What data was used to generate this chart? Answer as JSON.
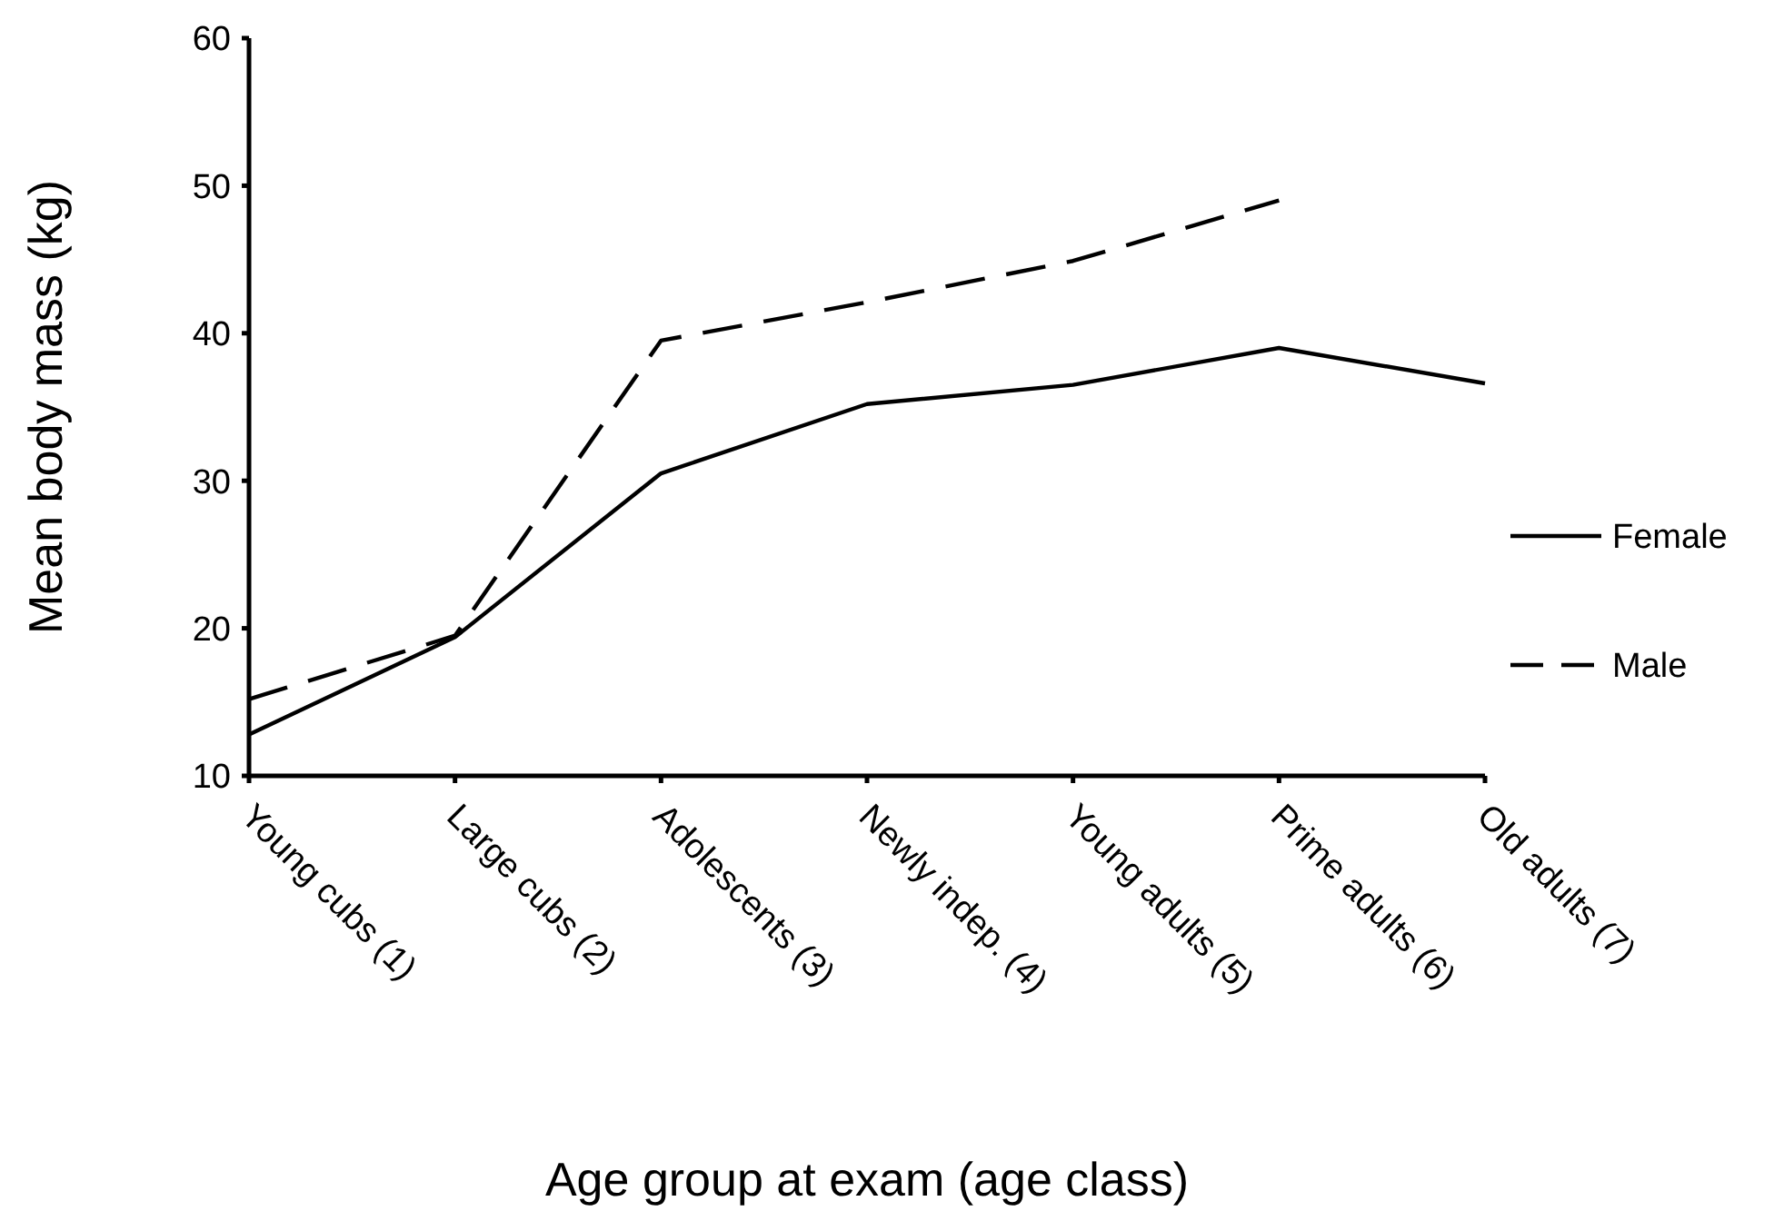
{
  "chart_data": {
    "type": "line",
    "xlabel": "Age group at exam (age class)",
    "ylabel": "Mean body mass (kg)",
    "categories": [
      "Young cubs (1)",
      "Large cubs (2)",
      "Adolescents (3)",
      "Newly indep. (4)",
      "Young adults (5)",
      "Prime adults (6)",
      "Old adults (7)"
    ],
    "series": [
      {
        "name": "Female",
        "color": "#000000",
        "line_style": "solid",
        "values": [
          12.8,
          19.4,
          30.5,
          35.2,
          36.5,
          39.0,
          36.6
        ]
      },
      {
        "name": "Male",
        "color": "#000000",
        "line_style": "dashed",
        "values": [
          15.2,
          19.5,
          39.5,
          42.1,
          44.9,
          49.0,
          null
        ]
      }
    ],
    "ylim": [
      10,
      60
    ],
    "yticks": [
      10,
      20,
      30,
      40,
      50,
      60
    ],
    "grid": false,
    "legend": "right",
    "marker": "none"
  }
}
